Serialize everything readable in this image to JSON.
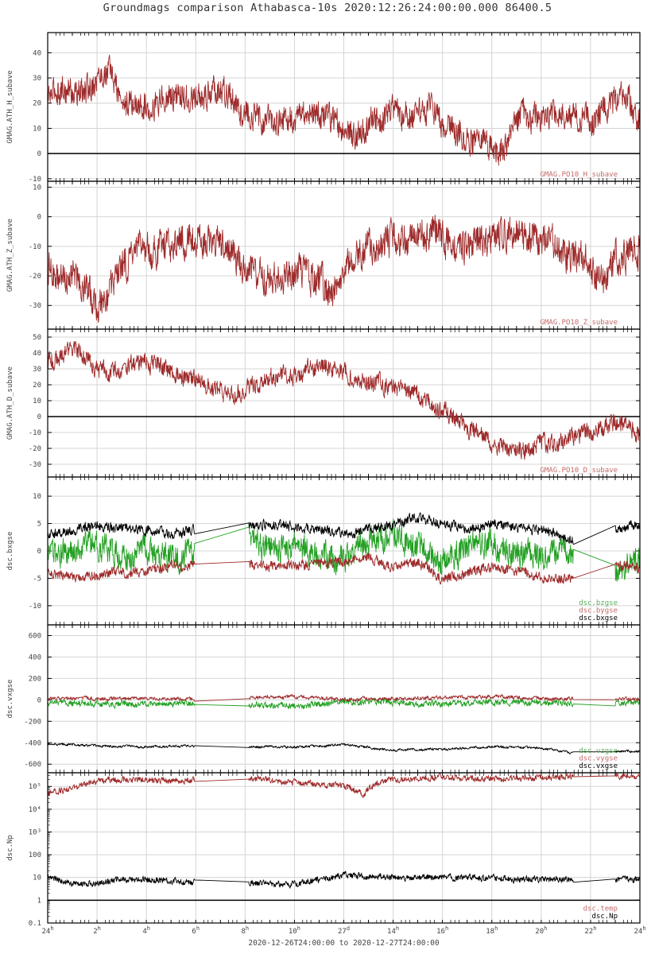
{
  "page": {
    "title": "Groundmags comparison Athabasca-10s 2020:12:26:24:00:00.000 86400.5",
    "xlabel": "2020-12-26T24:00:00 to 2020-12-27T24:00:00"
  },
  "colors": {
    "red": "#9e2a2a",
    "red_legend": "#c46a6a",
    "green": "#22a022",
    "green_legend": "#5aae5a",
    "black": "#000000",
    "grid": "#d4d4d4",
    "frame": "#000000"
  },
  "chart_data": [
    {
      "type": "line",
      "ylabel": "GMAG.ATH_H_subave",
      "ylim": [
        -11,
        48
      ],
      "yticks": [
        -10,
        0,
        10,
        20,
        30,
        40
      ],
      "ytick_labels": [
        "-10",
        "0",
        "10",
        "20",
        "30",
        "40"
      ],
      "zero_line": 0,
      "series": [
        {
          "name": "GMAG.PO10_H_subave",
          "color": "red",
          "noise": 5,
          "x": [
            0,
            0.5,
            1,
            1.5,
            2,
            2.5,
            3,
            4,
            5,
            6,
            7,
            8,
            9,
            10,
            11,
            12,
            12.5,
            13,
            13.5,
            14,
            15,
            15.5,
            16,
            17,
            17.5,
            18,
            18.5,
            19,
            20,
            21,
            22,
            23,
            23.5,
            24
          ],
          "y": [
            22,
            26,
            25,
            24,
            30,
            33,
            20,
            19,
            24,
            21,
            26,
            17,
            12,
            15,
            16,
            10,
            7,
            12,
            14,
            16,
            14,
            18,
            12,
            6,
            2,
            5,
            0,
            12,
            14,
            15,
            14,
            20,
            22,
            14
          ]
        }
      ],
      "legend": [
        "GMAG.PO10_H_subave"
      ]
    },
    {
      "type": "line",
      "ylabel": "GMAG.ATH_Z_subave",
      "ylim": [
        -38,
        12
      ],
      "yticks": [
        -30,
        -20,
        -10,
        0,
        10
      ],
      "ytick_labels": [
        "-30",
        "-20",
        "-10",
        "0",
        "10"
      ],
      "series": [
        {
          "name": "GMAG.PO10_Z_subave",
          "color": "red",
          "noise": 5,
          "x": [
            0,
            0.5,
            1,
            1.5,
            2,
            2.5,
            3,
            4,
            5,
            6,
            7,
            8,
            9,
            10,
            11,
            11.5,
            12,
            13,
            14,
            15,
            15.5,
            16,
            17,
            18,
            19,
            20,
            21,
            22,
            22.5,
            23,
            24
          ],
          "y": [
            -16,
            -22,
            -18,
            -24,
            -30,
            -26,
            -17,
            -11,
            -9,
            -6,
            -10,
            -18,
            -20,
            -18,
            -22,
            -25,
            -16,
            -10,
            -9,
            -6,
            -4,
            -8,
            -10,
            -7,
            -4,
            -8,
            -13,
            -16,
            -23,
            -14,
            -10
          ]
        }
      ],
      "legend": [
        "GMAG.PO10_Z_subave"
      ]
    },
    {
      "type": "line",
      "ylabel": "GMAG.ATH_D_subave",
      "ylim": [
        -38,
        55
      ],
      "yticks": [
        -30,
        -20,
        -10,
        0,
        10,
        20,
        30,
        40,
        50
      ],
      "ytick_labels": [
        "-30",
        "-20",
        "-10",
        "0",
        "10",
        "20",
        "30",
        "40",
        "50"
      ],
      "zero_line": 0,
      "series": [
        {
          "name": "GMAG.PO10_D_subave",
          "color": "red",
          "noise": 5,
          "x": [
            0,
            0.5,
            1,
            1.5,
            2,
            3,
            4,
            5,
            6,
            7,
            7.5,
            8,
            9,
            10,
            11,
            12,
            13,
            14,
            15,
            16,
            16.5,
            17,
            18,
            18.5,
            19,
            20,
            21,
            22,
            23,
            24
          ],
          "y": [
            35,
            38,
            42,
            38,
            28,
            30,
            35,
            28,
            24,
            16,
            12,
            18,
            26,
            25,
            32,
            28,
            22,
            18,
            12,
            5,
            0,
            -6,
            -15,
            -20,
            -22,
            -18,
            -15,
            -10,
            -2,
            -12
          ]
        }
      ],
      "legend": [
        "GMAG.PO10_D_subave"
      ]
    },
    {
      "type": "line",
      "ylabel": "dsc.bxgse",
      "ylim": [
        -13.5,
        13.5
      ],
      "yticks": [
        -10,
        -5,
        0,
        5,
        10
      ],
      "ytick_labels": [
        "-10",
        "-5",
        "0",
        "5",
        "10"
      ],
      "series": [
        {
          "name": "dsc.bzgse",
          "color": "green",
          "noise": 2.2,
          "x": [
            0,
            0.5,
            1,
            1.5,
            2,
            3,
            4,
            5,
            5.95
          ],
          "y": [
            -2,
            -1,
            0,
            2,
            1,
            -1,
            0,
            -1,
            0.5
          ],
          "x2": [
            8.15,
            9,
            10,
            11,
            12,
            13,
            14,
            15,
            16,
            17,
            18,
            19,
            20,
            21.3
          ],
          "y2": [
            3,
            0,
            1,
            -1,
            -2,
            2,
            3,
            1,
            -2,
            0,
            2,
            0,
            -1,
            0
          ],
          "x3": [
            23,
            23.5,
            24
          ],
          "y3": [
            -4,
            -2,
            -2
          ]
        },
        {
          "name": "dsc.bygse",
          "color": "red",
          "noise": 0.8,
          "x": [
            0,
            1,
            2,
            3,
            4,
            5,
            5.95
          ],
          "y": [
            -4,
            -5,
            -4.5,
            -4,
            -3.5,
            -3,
            -2.5
          ],
          "x2": [
            8.15,
            9,
            10,
            11,
            12,
            13,
            14,
            15,
            16,
            17,
            18,
            19,
            20,
            21.3
          ],
          "y2": [
            -2.5,
            -3,
            -2.5,
            -2.5,
            -2,
            -1,
            -3,
            -2,
            -5,
            -4,
            -3,
            -3.5,
            -4.5,
            -5
          ],
          "x3": [
            23,
            23.5,
            24
          ],
          "y3": [
            -3,
            -2.5,
            -3
          ]
        },
        {
          "name": "dsc.bxgse",
          "color": "black",
          "noise": 0.8,
          "x": [
            0,
            1,
            2,
            3,
            4,
            5,
            5.95
          ],
          "y": [
            3,
            4,
            4.5,
            4,
            4,
            3,
            4
          ],
          "x2": [
            8.15,
            9,
            10,
            11,
            12,
            13,
            14,
            15,
            16,
            17,
            18,
            19,
            20,
            21.3
          ],
          "y2": [
            4.5,
            5,
            4.5,
            4,
            3,
            4,
            5,
            6,
            5,
            4,
            5,
            4,
            4,
            2
          ],
          "x3": [
            23,
            23.5,
            24
          ],
          "y3": [
            4,
            4.5,
            5
          ]
        }
      ],
      "legend": [
        "dsc.bzgse",
        "dsc.bygse",
        "dsc.bxgse"
      ]
    },
    {
      "type": "line",
      "ylabel": "dsc.vxgse",
      "ylim": [
        -680,
        700
      ],
      "yticks": [
        -600,
        -400,
        -200,
        0,
        200,
        400,
        600
      ],
      "ytick_labels": [
        "-600",
        "-400",
        "-200",
        "0",
        "200",
        "400",
        "600"
      ],
      "series": [
        {
          "name": "dsc.vzgse",
          "color": "green",
          "noise": 25,
          "x": [
            0,
            2,
            4,
            5.95
          ],
          "y": [
            -20,
            -35,
            -40,
            -30
          ],
          "x2": [
            8.15,
            10,
            12,
            14,
            16,
            18,
            20,
            21.3
          ],
          "y2": [
            -40,
            -60,
            -20,
            -30,
            -40,
            -20,
            -30,
            -30
          ],
          "x3": [
            23,
            24
          ],
          "y3": [
            -40,
            -30
          ]
        },
        {
          "name": "dsc.vygse",
          "color": "red",
          "noise": 15,
          "x": [
            0,
            2,
            4,
            5.95
          ],
          "y": [
            10,
            15,
            10,
            5
          ],
          "x2": [
            8.15,
            10,
            12,
            14,
            16,
            18,
            20,
            21.3
          ],
          "y2": [
            20,
            30,
            5,
            15,
            20,
            30,
            10,
            10
          ],
          "x3": [
            23,
            24
          ],
          "y3": [
            10,
            5
          ]
        },
        {
          "name": "dsc.vxgse",
          "color": "black",
          "noise": 10,
          "x": [
            0,
            2,
            4,
            5.95
          ],
          "y": [
            -410,
            -430,
            -440,
            -430
          ],
          "x2": [
            8.15,
            10,
            12,
            14,
            16,
            18,
            20,
            21.3
          ],
          "y2": [
            -440,
            -440,
            -420,
            -470,
            -460,
            -440,
            -450,
            -500
          ],
          "x3": [
            23,
            24
          ],
          "y3": [
            -480,
            -480
          ]
        }
      ],
      "legend": [
        "dsc.vzgse",
        "dsc.vygse",
        "dsc.vxgse"
      ]
    },
    {
      "type": "line",
      "ylabel": "dsc.Np",
      "log": true,
      "ylim": [
        0.1,
        400000
      ],
      "yticks": [
        0.1,
        1,
        10,
        100,
        1000,
        10000,
        100000
      ],
      "ytick_labels": [
        "0.1",
        "1",
        "10",
        "100",
        "10³",
        "10⁴",
        "10⁵"
      ],
      "zero_line": 1,
      "series": [
        {
          "name": "dsc.temp",
          "color": "red",
          "noise": 0.12,
          "x": [
            0,
            1,
            2,
            3,
            4,
            5,
            5.95
          ],
          "y": [
            50000,
            80000,
            150000,
            200000,
            200000,
            180000,
            200000
          ],
          "x2": [
            8.15,
            10,
            11,
            12,
            12.8,
            13,
            14,
            16,
            18,
            20,
            21.3
          ],
          "y2": [
            200000,
            150000,
            120000,
            100000,
            40000,
            80000,
            200000,
            250000,
            200000,
            250000,
            250000
          ],
          "x3": [
            23,
            24
          ],
          "y3": [
            280000,
            300000
          ]
        },
        {
          "name": "dsc.Np",
          "color": "black",
          "noise": 0.12,
          "x": [
            0,
            1,
            2,
            3,
            4,
            5,
            5.95
          ],
          "y": [
            10,
            5,
            6,
            8,
            8,
            7,
            6
          ],
          "x2": [
            8.15,
            9,
            10,
            11,
            12,
            13,
            14,
            16,
            18,
            20,
            21.3
          ],
          "y2": [
            6,
            5,
            5,
            8,
            13,
            12,
            10,
            10,
            9,
            8,
            8
          ],
          "x3": [
            23,
            24
          ],
          "y3": [
            8,
            8
          ]
        }
      ],
      "legend": [
        "dsc.temp",
        "dsc.Np"
      ]
    }
  ],
  "x_axis": {
    "range": [
      0,
      24
    ],
    "ticks": [
      0,
      2,
      4,
      6,
      8,
      10,
      12,
      14,
      16,
      18,
      20,
      22,
      24
    ],
    "tick_labels": [
      {
        "n": "24",
        "s": "h"
      },
      {
        "n": "2",
        "s": "h"
      },
      {
        "n": "4",
        "s": "h"
      },
      {
        "n": "6",
        "s": "h"
      },
      {
        "n": "8",
        "s": "h"
      },
      {
        "n": "10",
        "s": "h"
      },
      {
        "n": "27",
        "s": "d"
      },
      {
        "n": "14",
        "s": "h"
      },
      {
        "n": "16",
        "s": "h"
      },
      {
        "n": "18",
        "s": "h"
      },
      {
        "n": "20",
        "s": "h"
      },
      {
        "n": "22",
        "s": "h"
      },
      {
        "n": "24",
        "s": "h"
      }
    ]
  }
}
